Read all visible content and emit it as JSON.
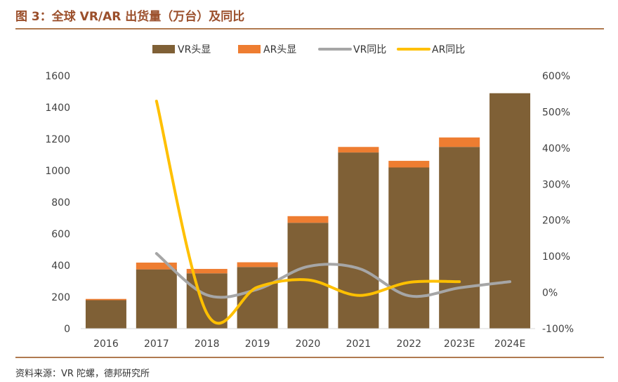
{
  "title": "图 3：全球 VR/AR 出货量（万台）及同比",
  "source": "资料来源：VR 陀螺，德邦研究所",
  "chart_data": {
    "type": "bar",
    "stacked": true,
    "categories": [
      "2016",
      "2017",
      "2018",
      "2019",
      "2020",
      "2021",
      "2022",
      "2023E",
      "2024E"
    ],
    "series": [
      {
        "name": "VR头显",
        "type": "bar",
        "axis": "left",
        "color": "#7f6036",
        "values": [
          180,
          375,
          350,
          390,
          670,
          1115,
          1020,
          1150,
          1490
        ]
      },
      {
        "name": "AR头显",
        "type": "bar",
        "axis": "left",
        "color": "#ee7d31",
        "values": [
          8,
          43,
          28,
          30,
          42,
          35,
          42,
          60,
          0
        ]
      },
      {
        "name": "VR同比",
        "type": "line",
        "axis": "right",
        "color": "#a6a6a6",
        "values": [
          null,
          108,
          -7,
          9,
          72,
          67,
          -9,
          13,
          30
        ]
      },
      {
        "name": "AR同比",
        "type": "line",
        "axis": "right",
        "color": "#ffc000",
        "values": [
          null,
          530,
          -58,
          15,
          35,
          -8,
          28,
          30,
          null
        ]
      }
    ],
    "y_left": {
      "min": 0,
      "max": 1600,
      "ticks": [
        0,
        200,
        400,
        600,
        800,
        1000,
        1200,
        1400,
        1600
      ]
    },
    "y_right": {
      "min": -100,
      "max": 600,
      "ticks": [
        "-100%",
        "0%",
        "100%",
        "200%",
        "300%",
        "400%",
        "500%",
        "600%"
      ]
    },
    "legend_position": "top-center",
    "grid": false
  }
}
